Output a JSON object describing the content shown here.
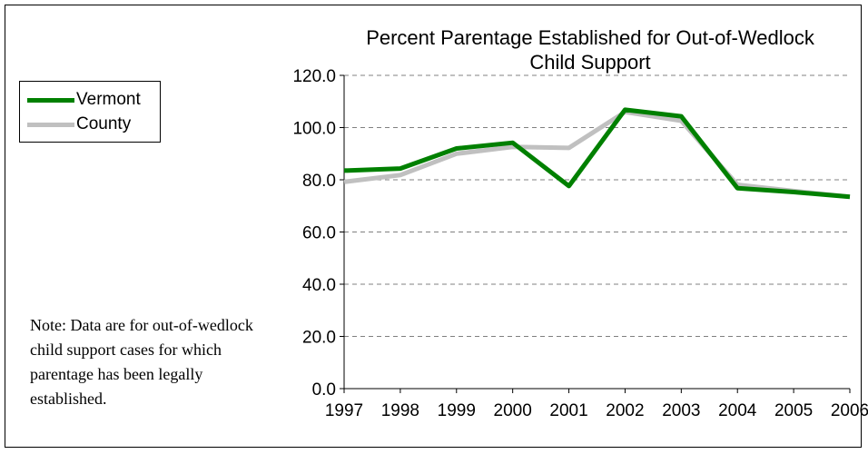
{
  "chart_data": {
    "type": "line",
    "title": "Percent Parentage Established for Out-of-Wedlock Child Support",
    "title_lines": [
      "Percent Parentage Established for Out-of-Wedlock",
      "Child Support"
    ],
    "xlabel": "",
    "ylabel": "",
    "x": [
      "1997",
      "1998",
      "1999",
      "2000",
      "2001",
      "2002",
      "2003",
      "2004",
      "2005",
      "2006"
    ],
    "ylim": [
      0,
      120
    ],
    "yticks": [
      "0.0",
      "20.0",
      "40.0",
      "60.0",
      "80.0",
      "100.0",
      "120.0"
    ],
    "grid": "dashed horizontal",
    "legend_position": "left",
    "series": [
      {
        "name": "Vermont",
        "color": "#008000",
        "values": [
          83.5,
          84.3,
          92.0,
          94.2,
          77.6,
          106.8,
          104.3,
          76.8,
          75.3,
          73.5
        ]
      },
      {
        "name": "County",
        "color": "#c0c0c0",
        "values": [
          79.2,
          81.8,
          90.0,
          92.6,
          92.2,
          106.0,
          102.6,
          78.1,
          75.7,
          73.5
        ]
      }
    ]
  },
  "note": {
    "lines": [
      "Note: Data are for out-of-wedlock",
      "child support cases for which",
      "parentage has been legally",
      "established."
    ]
  }
}
